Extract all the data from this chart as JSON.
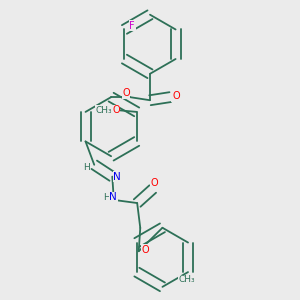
{
  "background_color": "#ebebeb",
  "bond_color": "#2d7057",
  "atom_colors": {
    "O": "#ff0000",
    "N": "#0000ee",
    "F": "#cc00cc",
    "C": "#2d7057",
    "H": "#2d7057"
  },
  "figsize": [
    3.0,
    3.0
  ],
  "dpi": 100
}
